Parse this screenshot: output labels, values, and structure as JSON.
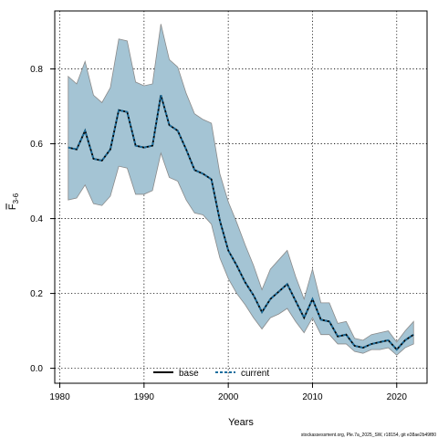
{
  "chart_data": {
    "type": "line",
    "xlabel": "Years",
    "ylabel": "F̄3-6",
    "ylabel_main": "F",
    "ylabel_sub": "3-6",
    "xlim": [
      1979.4,
      2023.6
    ],
    "ylim": [
      -0.04,
      0.955
    ],
    "xticks": [
      1980,
      1990,
      2000,
      2010,
      2020
    ],
    "yticks": [
      0.0,
      0.2,
      0.4,
      0.6,
      0.8
    ],
    "xtick_labels": [
      "1980",
      "1990",
      "2000",
      "2010",
      "2020"
    ],
    "ytick_labels": [
      "0.0",
      "0.2",
      "0.4",
      "0.6",
      "0.8"
    ],
    "grid": true,
    "legend_position": "bottom",
    "x": [
      1981,
      1982,
      1983,
      1984,
      1985,
      1986,
      1987,
      1988,
      1989,
      1990,
      1991,
      1992,
      1993,
      1994,
      1995,
      1996,
      1997,
      1998,
      1999,
      2000,
      2001,
      2002,
      2003,
      2004,
      2005,
      2006,
      2007,
      2008,
      2009,
      2010,
      2011,
      2012,
      2013,
      2014,
      2015,
      2016,
      2017,
      2018,
      2019,
      2020,
      2021,
      2022
    ],
    "band": {
      "upper": [
        0.78,
        0.76,
        0.82,
        0.73,
        0.71,
        0.75,
        0.88,
        0.875,
        0.765,
        0.755,
        0.76,
        0.92,
        0.825,
        0.805,
        0.735,
        0.68,
        0.665,
        0.655,
        0.52,
        0.445,
        0.39,
        0.33,
        0.275,
        0.21,
        0.265,
        0.29,
        0.315,
        0.245,
        0.185,
        0.265,
        0.175,
        0.175,
        0.12,
        0.125,
        0.08,
        0.075,
        0.09,
        0.095,
        0.1,
        0.07,
        0.1,
        0.125
      ],
      "lower": [
        0.45,
        0.455,
        0.49,
        0.44,
        0.435,
        0.46,
        0.54,
        0.535,
        0.465,
        0.465,
        0.475,
        0.575,
        0.51,
        0.5,
        0.45,
        0.415,
        0.41,
        0.385,
        0.295,
        0.24,
        0.2,
        0.17,
        0.135,
        0.105,
        0.135,
        0.145,
        0.16,
        0.125,
        0.095,
        0.135,
        0.09,
        0.09,
        0.065,
        0.065,
        0.045,
        0.04,
        0.05,
        0.05,
        0.055,
        0.035,
        0.055,
        0.065
      ]
    },
    "series": [
      {
        "name": "base",
        "color": "#000000",
        "style": "solid",
        "values": [
          0.59,
          0.585,
          0.635,
          0.56,
          0.555,
          0.585,
          0.69,
          0.685,
          0.595,
          0.59,
          0.595,
          0.73,
          0.65,
          0.635,
          0.585,
          0.53,
          0.52,
          0.505,
          0.395,
          0.315,
          0.275,
          0.23,
          0.195,
          0.15,
          0.185,
          0.205,
          0.225,
          0.18,
          0.135,
          0.185,
          0.13,
          0.125,
          0.085,
          0.09,
          0.06,
          0.055,
          0.065,
          0.07,
          0.075,
          0.05,
          0.075,
          0.09
        ]
      },
      {
        "name": "current",
        "color": "#1a6e9e",
        "style": "dashed",
        "values": [
          0.59,
          0.585,
          0.635,
          0.56,
          0.555,
          0.585,
          0.69,
          0.685,
          0.595,
          0.59,
          0.595,
          0.73,
          0.65,
          0.635,
          0.585,
          0.53,
          0.52,
          0.505,
          0.395,
          0.315,
          0.275,
          0.23,
          0.195,
          0.15,
          0.185,
          0.205,
          0.225,
          0.18,
          0.135,
          0.185,
          0.13,
          0.125,
          0.085,
          0.09,
          0.06,
          0.055,
          0.065,
          0.07,
          0.075,
          0.05,
          0.075,
          0.09
        ]
      }
    ],
    "colors": {
      "band_fill": "#a4c4d4",
      "band_edge": "#8a8a8a"
    }
  },
  "footer": {
    "watermark": "stockassessment.org, Ple.7a_2025_SW, r18154, git e38ae2b49f80"
  }
}
